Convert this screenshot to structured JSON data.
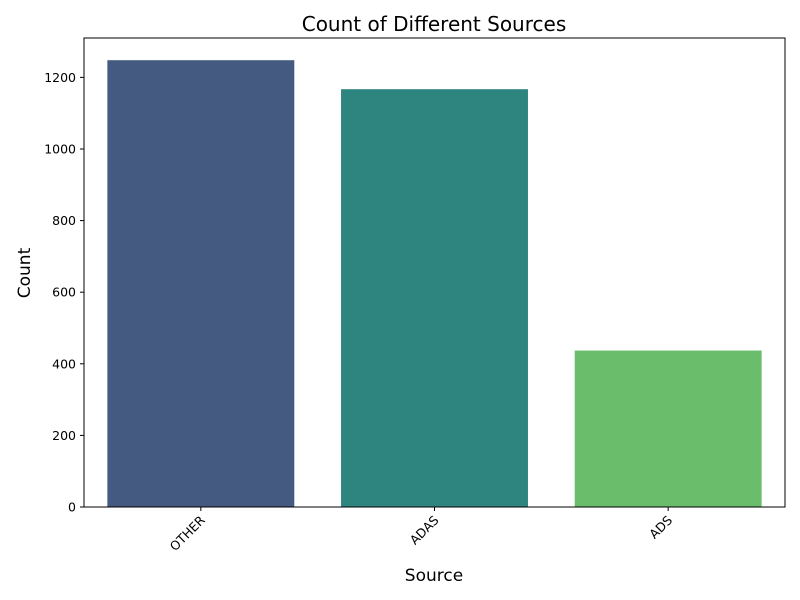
{
  "chart_data": {
    "type": "bar",
    "title": "Count of Different Sources",
    "xlabel": "Source",
    "ylabel": "Count",
    "categories": [
      "OTHER",
      "ADAS",
      "ADS"
    ],
    "values": [
      1248,
      1167,
      437
    ],
    "colors": [
      "#455a80",
      "#2e8580",
      "#6abd6b"
    ],
    "ylim": [
      0,
      1310
    ],
    "yticks": [
      0,
      200,
      400,
      600,
      800,
      1000,
      1200
    ],
    "xtick_rotation": 45,
    "grid": false,
    "legend": "none"
  }
}
